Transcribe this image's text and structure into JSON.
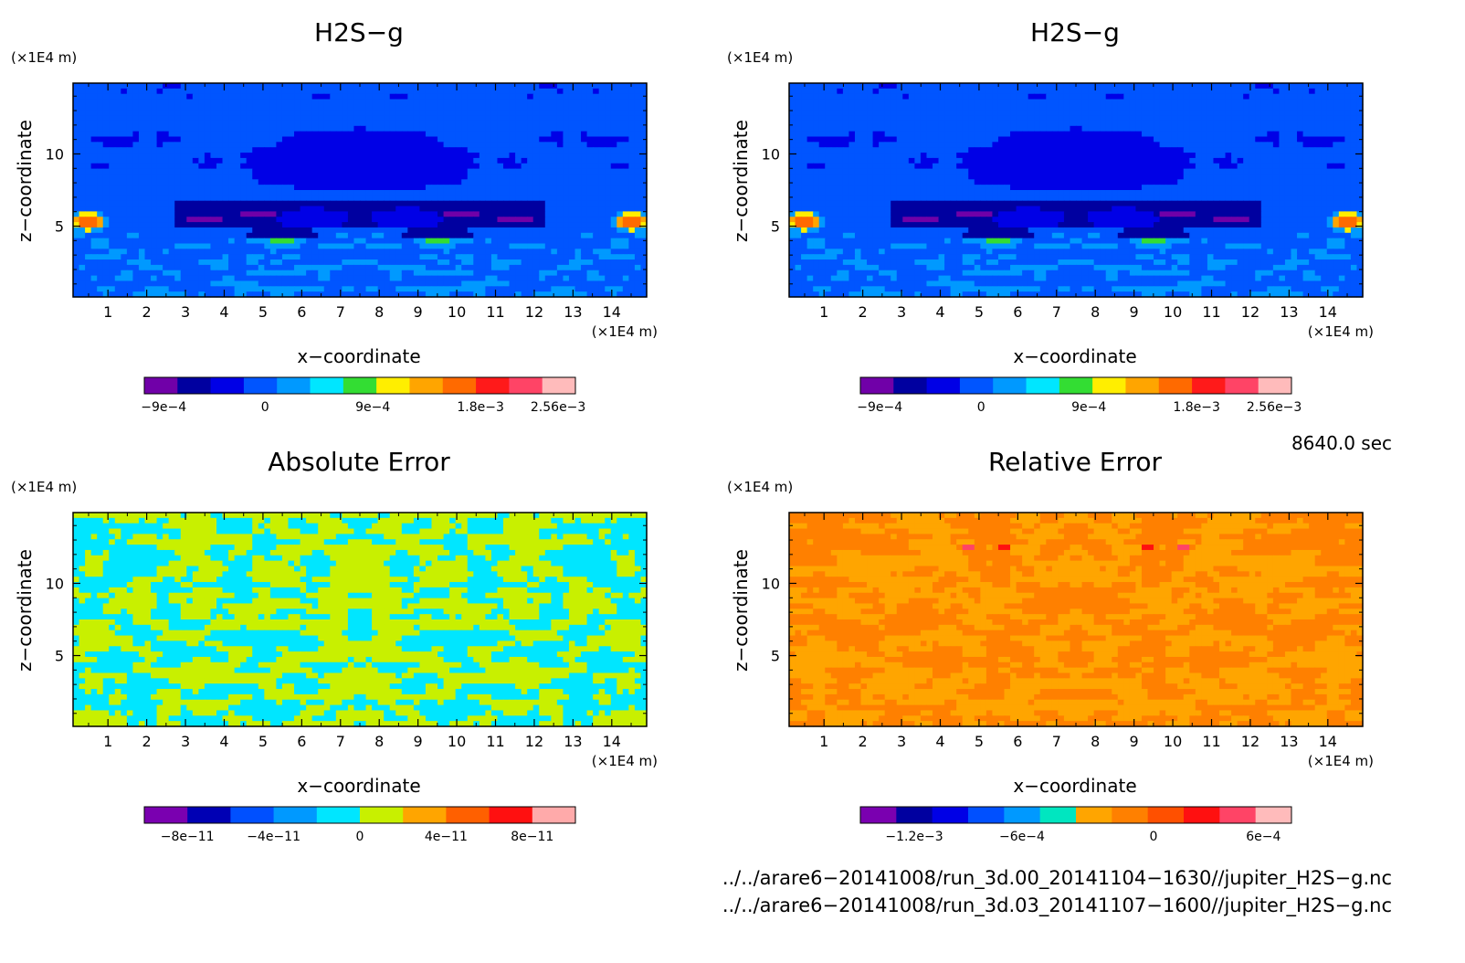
{
  "chart_data": [
    {
      "type": "heatmap",
      "title": "H2S−g",
      "xlabel": "x−coordinate",
      "ylabel": "z−coordinate",
      "x_unit": "(×1E4 m)",
      "y_unit": "(×1E4 m)",
      "xlim": [
        0.1,
        14.9
      ],
      "ylim": [
        0.1,
        14.9
      ],
      "x_ticks": [
        "1",
        "2",
        "3",
        "4",
        "5",
        "6",
        "7",
        "8",
        "9",
        "10",
        "11",
        "12",
        "13",
        "14"
      ],
      "y_ticks": [
        "5",
        "10"
      ],
      "field": "plume",
      "colorbar": {
        "colors": [
          "#7000a8",
          "#0000a0",
          "#0000e6",
          "#0055ff",
          "#0099ff",
          "#00e6ff",
          "#33dd33",
          "#ffee00",
          "#ffa500",
          "#ff6a00",
          "#ff1a1a",
          "#ff4466",
          "#ffbbbb"
        ],
        "tick_labels": [
          "−9e−4",
          "0",
          "9e−4",
          "1.8e−3",
          "2.56e−3"
        ]
      }
    },
    {
      "type": "heatmap",
      "title": "H2S−g",
      "xlabel": "x−coordinate",
      "ylabel": "z−coordinate",
      "x_unit": "(×1E4 m)",
      "y_unit": "(×1E4 m)",
      "xlim": [
        0.1,
        14.9
      ],
      "ylim": [
        0.1,
        14.9
      ],
      "x_ticks": [
        "1",
        "2",
        "3",
        "4",
        "5",
        "6",
        "7",
        "8",
        "9",
        "10",
        "11",
        "12",
        "13",
        "14"
      ],
      "y_ticks": [
        "5",
        "10"
      ],
      "field": "plume",
      "colorbar": {
        "colors": [
          "#7000a8",
          "#0000a0",
          "#0000e6",
          "#0055ff",
          "#0099ff",
          "#00e6ff",
          "#33dd33",
          "#ffee00",
          "#ffa500",
          "#ff6a00",
          "#ff1a1a",
          "#ff4466",
          "#ffbbbb"
        ],
        "tick_labels": [
          "−9e−4",
          "0",
          "9e−4",
          "1.8e−3",
          "2.56e−3"
        ]
      }
    },
    {
      "type": "heatmap",
      "title": "Absolute Error",
      "xlabel": "x−coordinate",
      "ylabel": "z−coordinate",
      "x_unit": "(×1E4 m)",
      "y_unit": "(×1E4 m)",
      "xlim": [
        0.1,
        14.9
      ],
      "ylim": [
        0.1,
        14.9
      ],
      "x_ticks": [
        "1",
        "2",
        "3",
        "4",
        "5",
        "6",
        "7",
        "8",
        "9",
        "10",
        "11",
        "12",
        "13",
        "14"
      ],
      "y_ticks": [
        "5",
        "10"
      ],
      "field": "noise_cyan_yellow",
      "colorbar": {
        "colors": [
          "#7a00b0",
          "#0000b4",
          "#0050ff",
          "#0099ff",
          "#00e6ff",
          "#c8f000",
          "#ffa500",
          "#ff6000",
          "#ff1010",
          "#ffaaaa"
        ],
        "tick_labels": [
          "−8e−11",
          "−4e−11",
          "0",
          "4e−11",
          "8e−11"
        ]
      }
    },
    {
      "type": "heatmap",
      "title": "Relative Error",
      "xlabel": "x−coordinate",
      "ylabel": "z−coordinate",
      "x_unit": "(×1E4 m)",
      "y_unit": "(×1E4 m)",
      "xlim": [
        0.1,
        14.9
      ],
      "ylim": [
        0.1,
        14.9
      ],
      "x_ticks": [
        "1",
        "2",
        "3",
        "4",
        "5",
        "6",
        "7",
        "8",
        "9",
        "10",
        "11",
        "12",
        "13",
        "14"
      ],
      "y_ticks": [
        "5",
        "10"
      ],
      "field": "noise_orange",
      "colorbar": {
        "colors": [
          "#7a00b0",
          "#0000a0",
          "#0000e6",
          "#0050ff",
          "#0099ff",
          "#00e6c0",
          "#ffa500",
          "#ff8000",
          "#ff5000",
          "#ff1010",
          "#ff4466",
          "#ffbbbb"
        ],
        "tick_labels": [
          "−1.2e−3",
          "−6e−4",
          "0",
          "6e−4"
        ]
      }
    }
  ],
  "time_label": "8640.0 sec",
  "files": [
    "../../arare6−20141008/run_3d.00_20141104−1630//jupiter_H2S−g.nc",
    "../../arare6−20141008/run_3d.03_20141107−1600//jupiter_H2S−g.nc"
  ]
}
